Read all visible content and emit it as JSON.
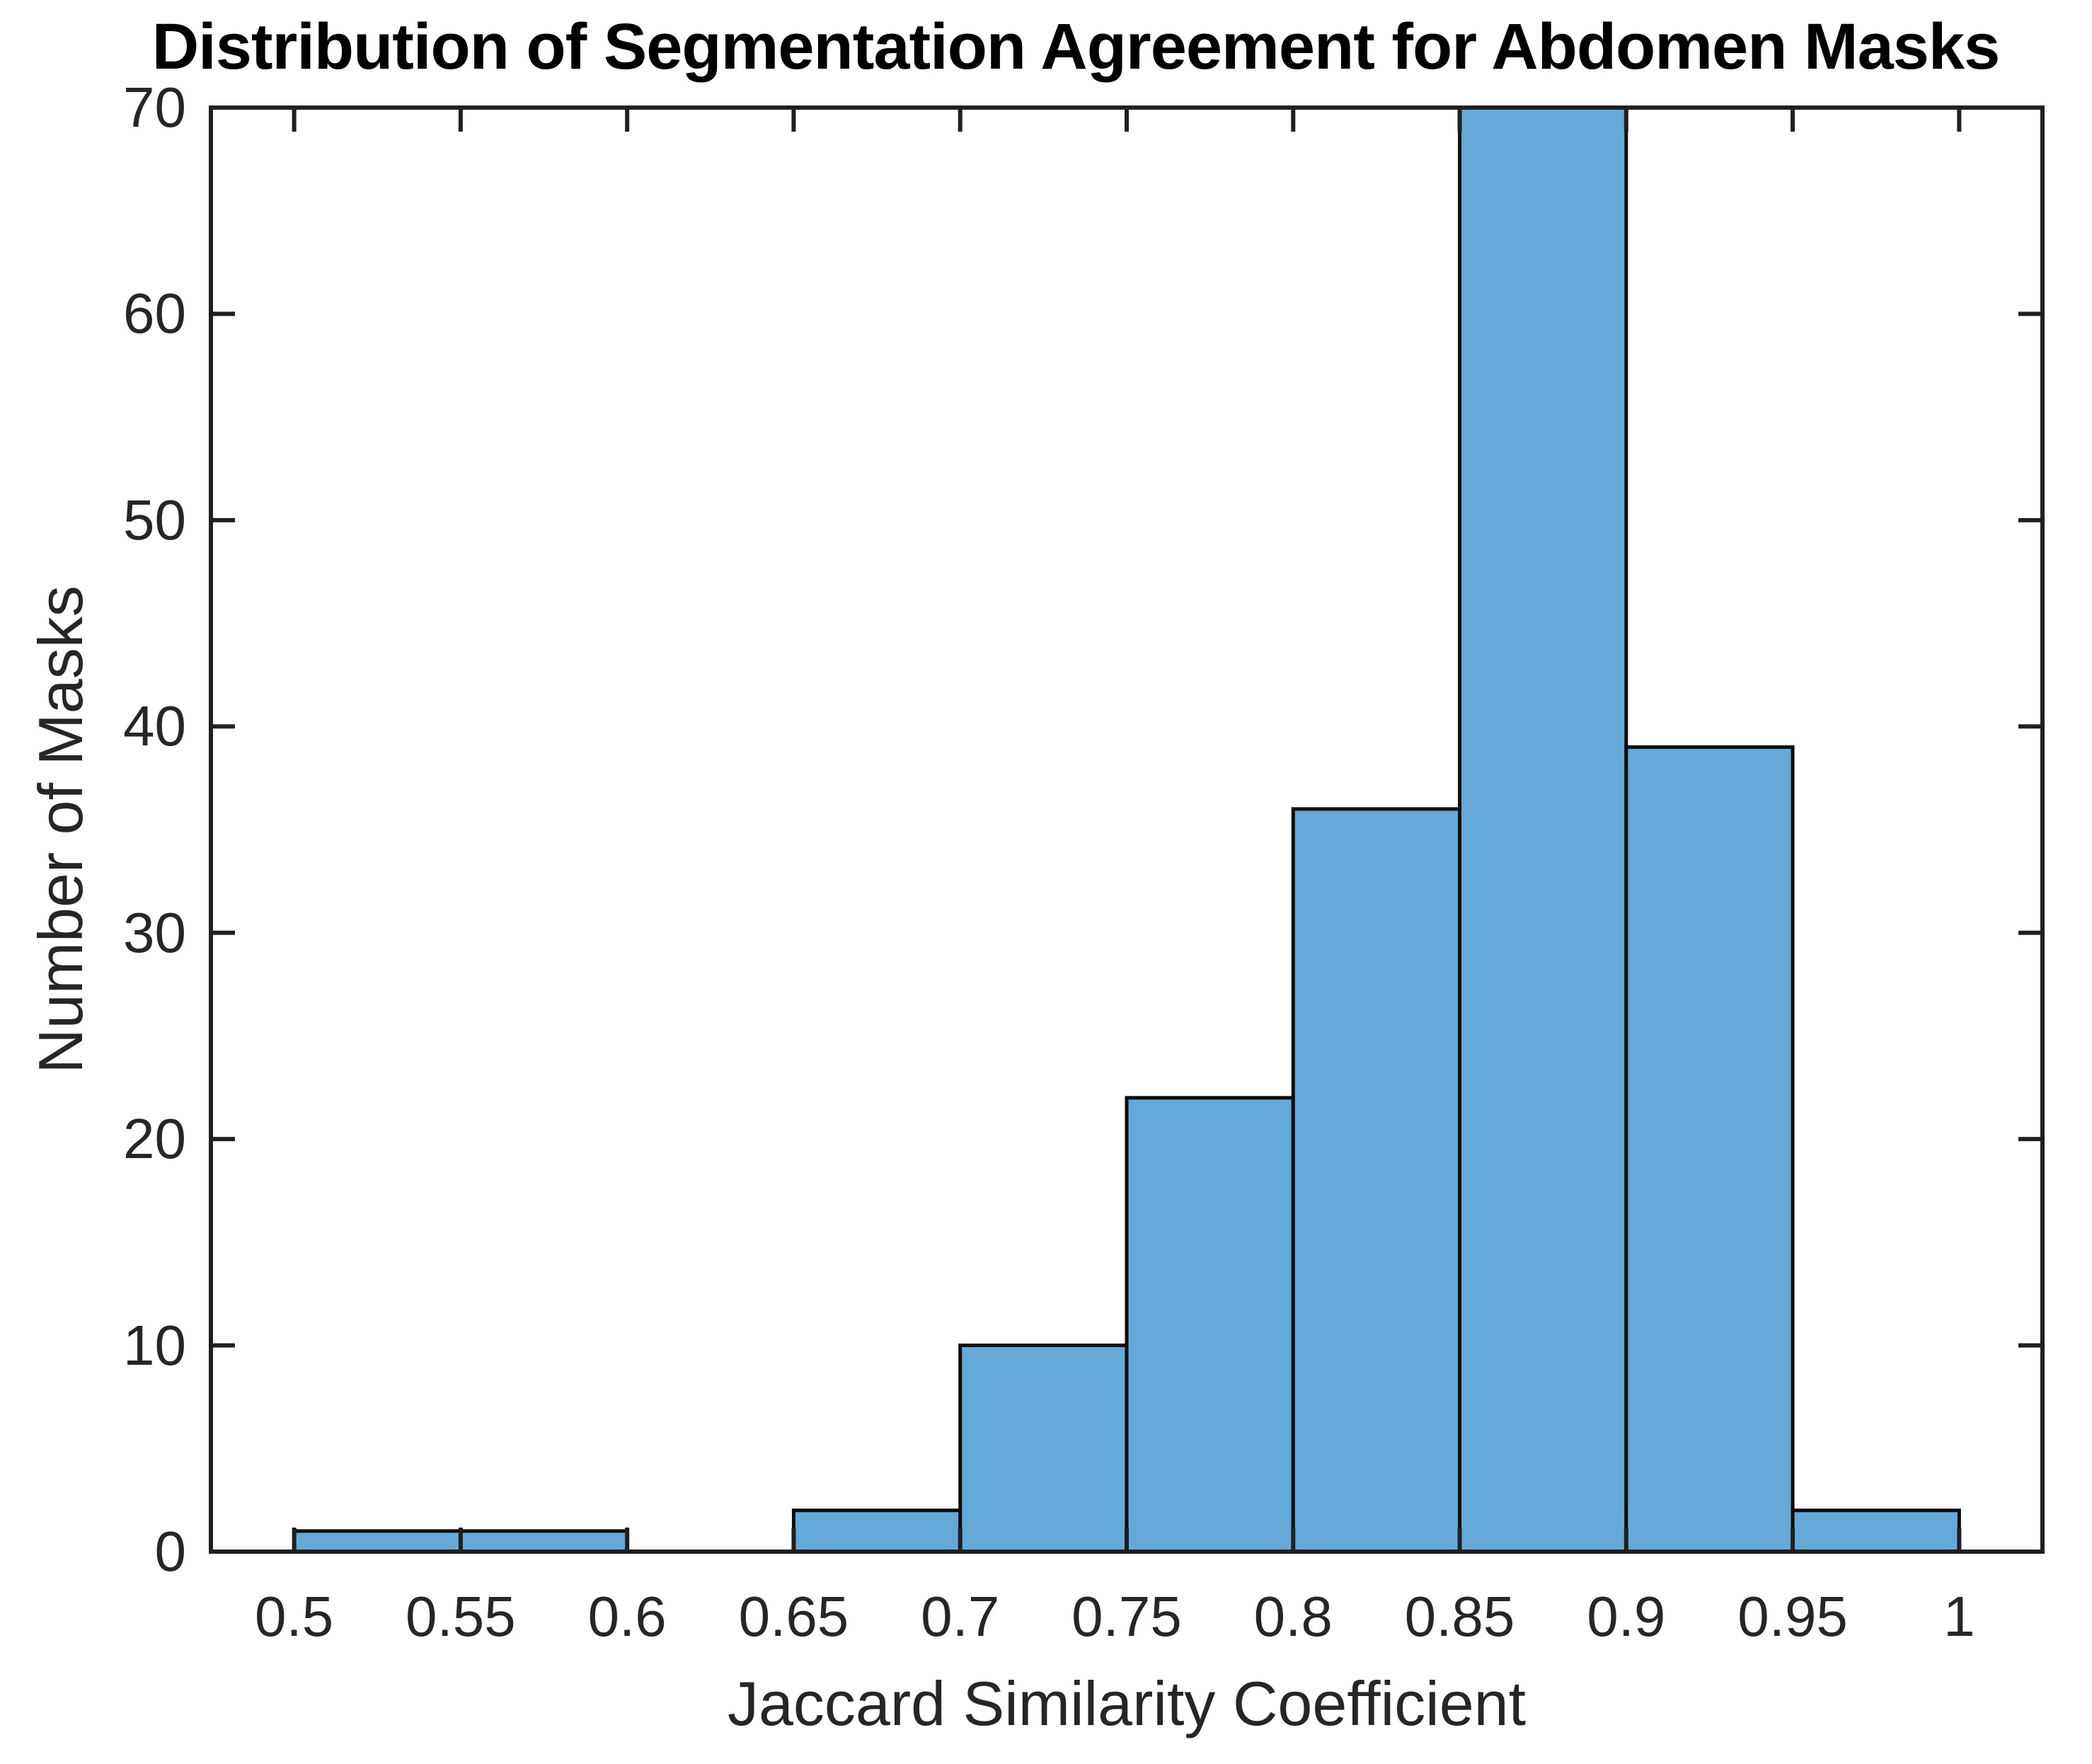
{
  "chart_data": {
    "type": "bar",
    "subtype": "histogram",
    "title": "Distribution of Segmentation Agreement for Abdomen Masks",
    "xlabel": "Jaccard Similarity Coefficient",
    "ylabel": "Number of Masks",
    "bin_edges": [
      0.5,
      0.55,
      0.6,
      0.65,
      0.7,
      0.75,
      0.8,
      0.85,
      0.9,
      0.95,
      1.0
    ],
    "categories": [
      "0.5-0.55",
      "0.55-0.6",
      "0.6-0.65",
      "0.65-0.7",
      "0.7-0.75",
      "0.75-0.8",
      "0.8-0.85",
      "0.85-0.9",
      "0.9-0.95",
      "0.95-1.0"
    ],
    "values": [
      1,
      1,
      0,
      2,
      10,
      22,
      36,
      70,
      39,
      2
    ],
    "xlim": [
      0.475,
      1.025
    ],
    "ylim": [
      0,
      70
    ],
    "xticks": [
      0.5,
      0.55,
      0.6,
      0.65,
      0.7,
      0.75,
      0.8,
      0.85,
      0.9,
      0.95,
      1
    ],
    "xtick_labels": [
      "0.5",
      "0.55",
      "0.6",
      "0.65",
      "0.7",
      "0.75",
      "0.8",
      "0.85",
      "0.9",
      "0.95",
      "1"
    ],
    "yticks": [
      0,
      10,
      20,
      30,
      40,
      50,
      60,
      70
    ],
    "ytick_labels": [
      "0",
      "10",
      "20",
      "30",
      "40",
      "50",
      "60",
      "70"
    ],
    "grid": false,
    "legend_position": "none",
    "box": true,
    "tick_direction": "in",
    "colors": {
      "bar_fill": "#64a9d8",
      "bar_edge": "#0d0d0d",
      "axis_frame": "#1f1f1f",
      "tick_mark": "#1f1f1f",
      "tick_text": "#262626",
      "title_text": "#000000",
      "background": "#ffffff"
    }
  }
}
